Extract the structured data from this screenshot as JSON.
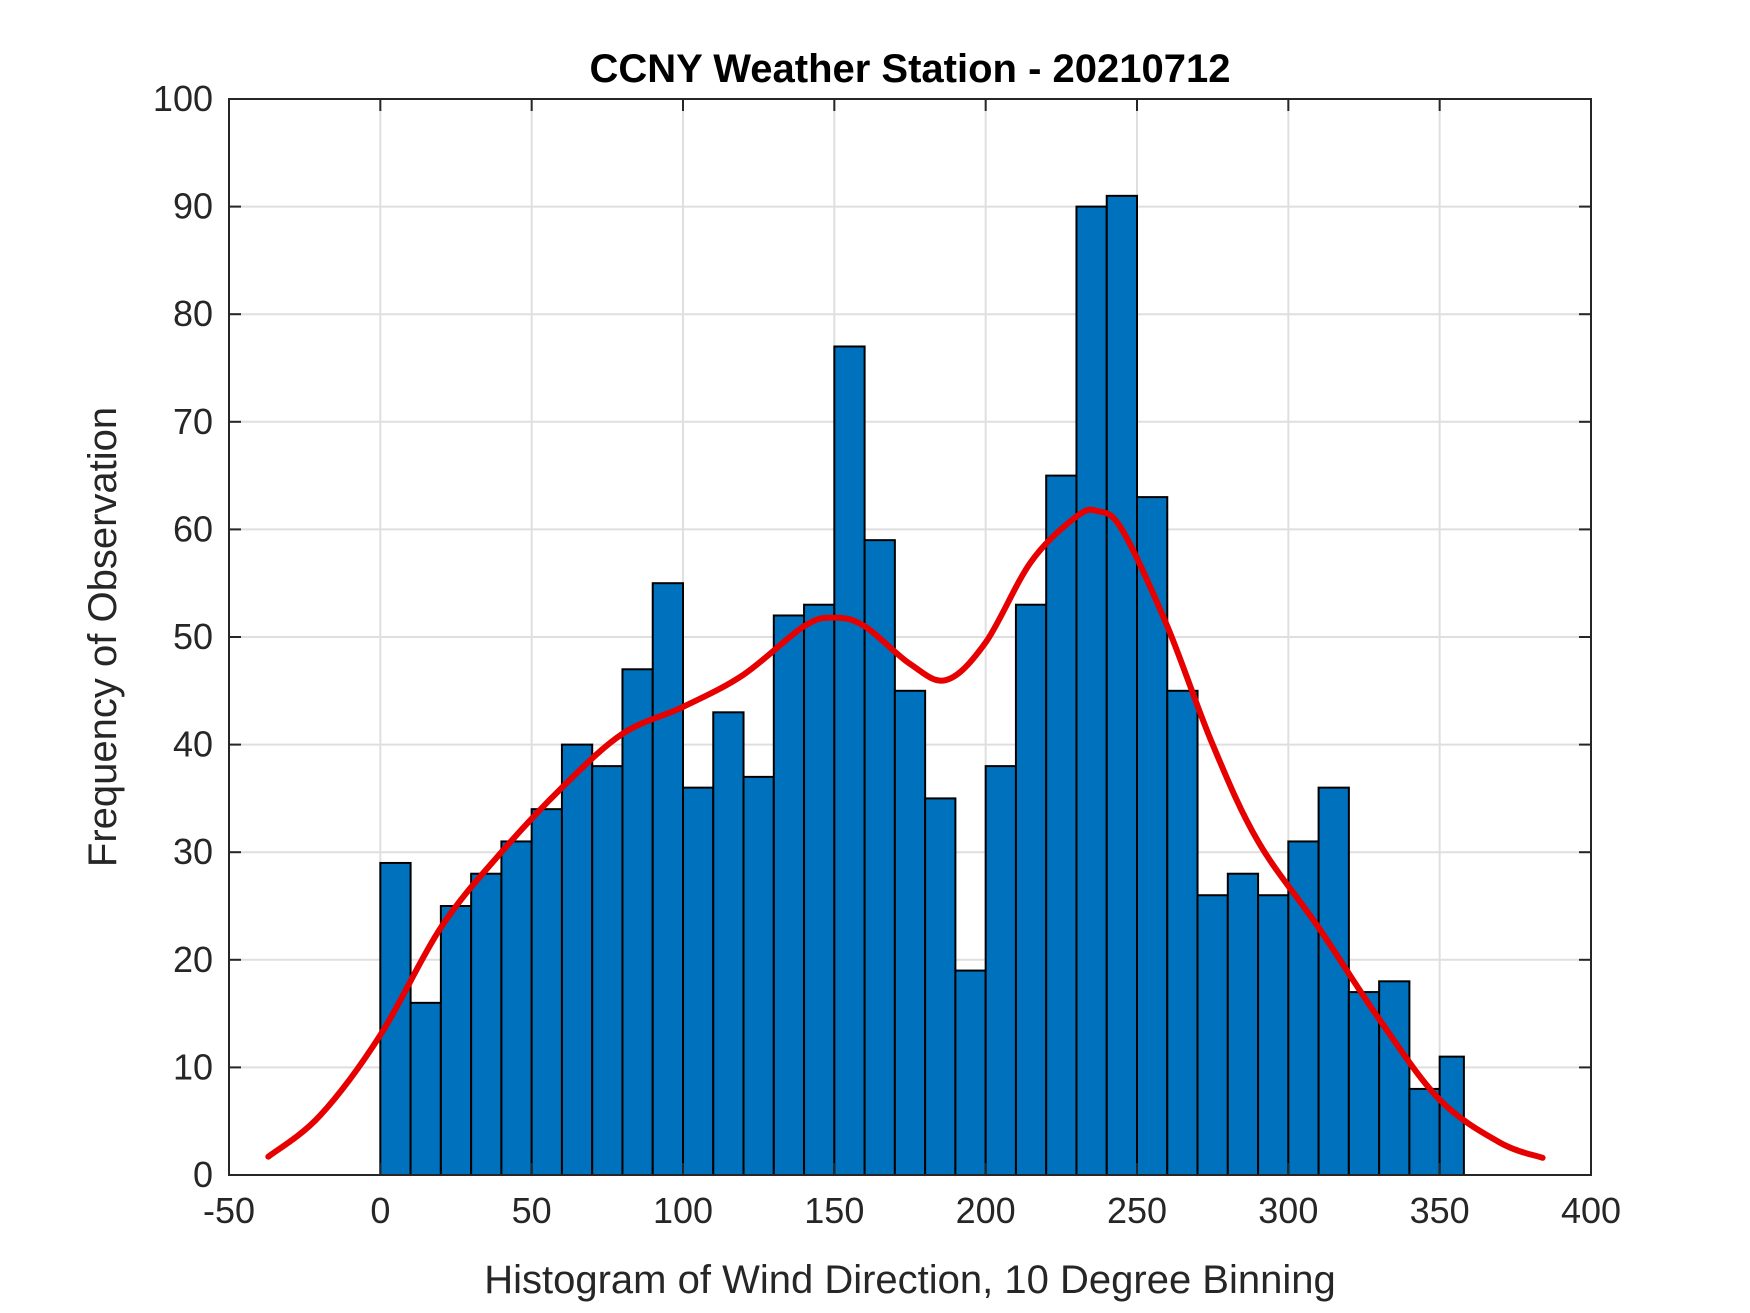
{
  "chart_data": {
    "type": "histogram",
    "title": "CCNY Weather Station - 20210712",
    "xlabel": "Histogram of Wind Direction, 10 Degree Binning",
    "ylabel": "Frequency of Observation",
    "xlim": [
      -50,
      400
    ],
    "ylim": [
      0,
      100
    ],
    "xticks": [
      -50,
      0,
      50,
      100,
      150,
      200,
      250,
      300,
      350,
      400
    ],
    "xtick_labels": [
      "-50",
      "0",
      "50",
      "100",
      "150",
      "200",
      "250",
      "300",
      "350",
      "400"
    ],
    "yticks": [
      0,
      10,
      20,
      30,
      40,
      50,
      60,
      70,
      80,
      90,
      100
    ],
    "ytick_labels": [
      "0",
      "10",
      "20",
      "30",
      "40",
      "50",
      "60",
      "70",
      "80",
      "90",
      "100"
    ],
    "grid": true,
    "bin_width": 10,
    "bin_edges_start": [
      0,
      10,
      20,
      30,
      40,
      50,
      60,
      70,
      80,
      90,
      100,
      110,
      120,
      130,
      140,
      150,
      160,
      170,
      180,
      190,
      200,
      210,
      220,
      230,
      240,
      250,
      260,
      270,
      280,
      290,
      300,
      310,
      320,
      330,
      340,
      350
    ],
    "bin_last_edge": 358,
    "counts": [
      29,
      16,
      25,
      28,
      31,
      34,
      40,
      38,
      47,
      55,
      36,
      43,
      37,
      52,
      53,
      77,
      59,
      45,
      35,
      19,
      38,
      53,
      65,
      90,
      91,
      63,
      45,
      26,
      28,
      26,
      31,
      36,
      17,
      18,
      8,
      11
    ],
    "bar_color": "#0072BD",
    "bar_edge_color": "#000000",
    "fit_curve": {
      "name": "density fit",
      "color": "#E60000",
      "x": [
        -37,
        -20,
        0,
        20,
        40,
        60,
        80,
        100,
        120,
        140,
        150,
        160,
        175,
        187,
        200,
        215,
        230,
        237,
        245,
        260,
        275,
        290,
        310,
        330,
        350,
        370,
        384
      ],
      "y": [
        1.7,
        5.5,
        13,
        23,
        30,
        36,
        41,
        43.5,
        46.5,
        51,
        51.8,
        51,
        47.5,
        46,
        49.5,
        57,
        61.2,
        61.7,
        60,
        51,
        40,
        31,
        23,
        14.5,
        7,
        3,
        1.6
      ]
    }
  }
}
